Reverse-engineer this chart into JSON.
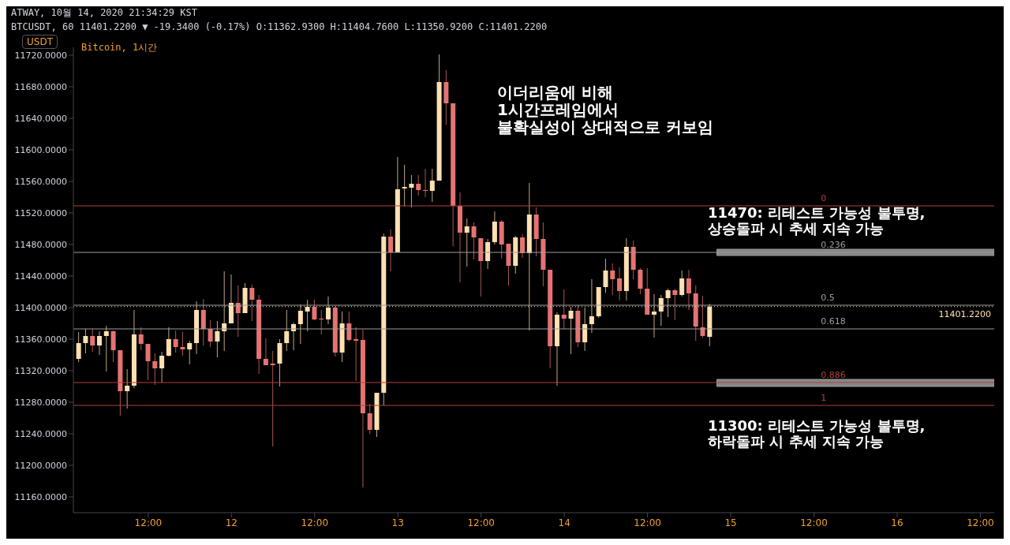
{
  "chart_data": {
    "type": "candlestick",
    "title": "Bitcoin, 1시간",
    "ylabel": "USDT",
    "annotations": [
      "ATWAY, 10월 14, 2020 21:34:29 KST",
      "BTCUSDT, 60 11401.2200 ▼ -19.3400 (-0.17%) O:11362.9300 H:11404.7600 L:11350.9200 C:11401.2200",
      "이더리움에 비해\n1시간프레임에서\n불확실성이 상대적으로 커보임",
      "11470: 리테스트 가능성 불투명,\n상승돌파 시 추세 지속 가능",
      "11300: 리테스트 가능성 불투명,\n하락돌파 시 추세 지속 가능",
      {
        "text": "0",
        "x": "2020-10-15T13:00",
        "y": 11529
      },
      {
        "text": "0.236",
        "x": "2020-10-15T13:00",
        "y": 11470
      },
      {
        "text": "0.5",
        "x": "2020-10-15T13:00",
        "y": 11403
      },
      {
        "text": "0.618",
        "x": "2020-10-15T13:00",
        "y": 11373
      },
      {
        "text": "0.886",
        "x": "2020-10-15T13:00",
        "y": 11305
      },
      {
        "text": "1",
        "x": "2020-10-15T13:00",
        "y": 11276
      }
    ],
    "x": [
      "2020-10-11T02:00",
      "2020-10-11T03:00",
      "2020-10-11T04:00",
      "2020-10-11T05:00",
      "2020-10-11T06:00",
      "2020-10-11T07:00",
      "2020-10-11T08:00",
      "2020-10-11T09:00",
      "2020-10-11T10:00",
      "2020-10-11T11:00",
      "2020-10-11T12:00",
      "2020-10-11T13:00",
      "2020-10-11T14:00",
      "2020-10-11T15:00",
      "2020-10-11T16:00",
      "2020-10-11T17:00",
      "2020-10-11T18:00",
      "2020-10-11T19:00",
      "2020-10-11T20:00",
      "2020-10-11T21:00",
      "2020-10-11T22:00",
      "2020-10-11T23:00",
      "2020-10-12T00:00",
      "2020-10-12T01:00",
      "2020-10-12T02:00",
      "2020-10-12T03:00",
      "2020-10-12T04:00",
      "2020-10-12T05:00",
      "2020-10-12T06:00",
      "2020-10-12T07:00",
      "2020-10-12T08:00",
      "2020-10-12T09:00",
      "2020-10-12T10:00",
      "2020-10-12T11:00",
      "2020-10-12T12:00",
      "2020-10-12T13:00",
      "2020-10-12T14:00",
      "2020-10-12T15:00",
      "2020-10-12T16:00",
      "2020-10-12T17:00",
      "2020-10-12T18:00",
      "2020-10-12T19:00",
      "2020-10-12T20:00",
      "2020-10-12T21:00",
      "2020-10-12T22:00",
      "2020-10-12T23:00",
      "2020-10-13T00:00",
      "2020-10-13T01:00",
      "2020-10-13T02:00",
      "2020-10-13T03:00",
      "2020-10-13T04:00",
      "2020-10-13T05:00",
      "2020-10-13T06:00",
      "2020-10-13T07:00",
      "2020-10-13T08:00",
      "2020-10-13T09:00",
      "2020-10-13T10:00",
      "2020-10-13T11:00",
      "2020-10-13T12:00",
      "2020-10-13T13:00",
      "2020-10-13T14:00",
      "2020-10-13T15:00",
      "2020-10-13T16:00",
      "2020-10-13T17:00",
      "2020-10-13T18:00",
      "2020-10-13T19:00",
      "2020-10-13T20:00",
      "2020-10-13T21:00",
      "2020-10-13T22:00",
      "2020-10-13T23:00",
      "2020-10-14T00:00",
      "2020-10-14T01:00",
      "2020-10-14T02:00",
      "2020-10-14T03:00",
      "2020-10-14T04:00",
      "2020-10-14T05:00",
      "2020-10-14T06:00",
      "2020-10-14T07:00",
      "2020-10-14T08:00",
      "2020-10-14T09:00",
      "2020-10-14T10:00",
      "2020-10-14T11:00",
      "2020-10-14T12:00",
      "2020-10-14T13:00",
      "2020-10-14T14:00",
      "2020-10-14T15:00",
      "2020-10-14T16:00",
      "2020-10-14T17:00",
      "2020-10-14T18:00",
      "2020-10-14T19:00",
      "2020-10-14T20:00",
      "2020-10-14T21:00"
    ],
    "ohlc": [
      [
        11335,
        11369,
        11331,
        11355
      ],
      [
        11355,
        11373,
        11342,
        11364
      ],
      [
        11364,
        11373,
        11344,
        11352
      ],
      [
        11352,
        11370,
        11340,
        11364
      ],
      [
        11364,
        11377,
        11319,
        11370
      ],
      [
        11370,
        11371,
        11331,
        11346
      ],
      [
        11346,
        11346,
        11263,
        11294
      ],
      [
        11294,
        11322,
        11272,
        11301
      ],
      [
        11301,
        11397,
        11298,
        11366
      ],
      [
        11366,
        11375,
        11346,
        11354
      ],
      [
        11354,
        11354,
        11308,
        11332
      ],
      [
        11332,
        11342,
        11302,
        11323
      ],
      [
        11323,
        11344,
        11305,
        11339
      ],
      [
        11339,
        11375,
        11338,
        11360
      ],
      [
        11360,
        11371,
        11343,
        11350
      ],
      [
        11350,
        11369,
        11339,
        11347
      ],
      [
        11347,
        11358,
        11328,
        11355
      ],
      [
        11355,
        11408,
        11341,
        11397
      ],
      [
        11397,
        11411,
        11352,
        11373
      ],
      [
        11373,
        11384,
        11350,
        11357
      ],
      [
        11357,
        11383,
        11337,
        11370
      ],
      [
        11370,
        11446,
        11345,
        11380
      ],
      [
        11380,
        11442,
        11380,
        11406
      ],
      [
        11406,
        11428,
        11363,
        11393
      ],
      [
        11393,
        11431,
        11393,
        11425
      ],
      [
        11425,
        11429,
        11383,
        11410
      ],
      [
        11410,
        11416,
        11316,
        11335
      ],
      [
        11335,
        11361,
        11327,
        11327
      ],
      [
        11329,
        11345,
        11224,
        11327
      ],
      [
        11329,
        11360,
        11300,
        11355
      ],
      [
        11355,
        11397,
        11345,
        11370
      ],
      [
        11370,
        11381,
        11346,
        11379
      ],
      [
        11379,
        11404,
        11354,
        11396
      ],
      [
        11395,
        11410,
        11370,
        11401
      ],
      [
        11401,
        11410,
        11384,
        11385
      ],
      [
        11386,
        11397,
        11366,
        11385
      ],
      [
        11385,
        11414,
        11379,
        11400
      ],
      [
        11400,
        11402,
        11338,
        11343
      ],
      [
        11343,
        11395,
        11331,
        11380
      ],
      [
        11380,
        11395,
        11357,
        11359
      ],
      [
        11360,
        11375,
        11307,
        11358
      ],
      [
        11359,
        11372,
        11172,
        11266
      ],
      [
        11266,
        11278,
        11240,
        11245
      ],
      [
        11245,
        11292,
        11236,
        11292
      ],
      [
        11292,
        11494,
        11276,
        11490
      ],
      [
        11490,
        11499,
        11446,
        11470
      ],
      [
        11470,
        11591,
        11470,
        11550
      ],
      [
        11551,
        11581,
        11528,
        11553
      ],
      [
        11552,
        11568,
        11527,
        11557
      ],
      [
        11557,
        11568,
        11542,
        11549
      ],
      [
        11549,
        11576,
        11540,
        11548
      ],
      [
        11548,
        11576,
        11534,
        11561
      ],
      [
        11561,
        11721,
        11561,
        11686
      ],
      [
        11686,
        11701,
        11632,
        11659
      ],
      [
        11659,
        11659,
        11478,
        11529
      ],
      [
        11529,
        11546,
        11432,
        11495
      ],
      [
        11495,
        11513,
        11452,
        11503
      ],
      [
        11503,
        11508,
        11461,
        11489
      ],
      [
        11488,
        11488,
        11414,
        11459
      ],
      [
        11459,
        11487,
        11449,
        11483
      ],
      [
        11483,
        11522,
        11480,
        11509
      ],
      [
        11509,
        11511,
        11462,
        11480
      ],
      [
        11481,
        11481,
        11428,
        11453
      ],
      [
        11453,
        11491,
        11443,
        11489
      ],
      [
        11489,
        11493,
        11463,
        11469
      ],
      [
        11469,
        11558,
        11371,
        11518
      ],
      [
        11518,
        11527,
        11465,
        11487
      ],
      [
        11487,
        11508,
        11427,
        11448
      ],
      [
        11448,
        11448,
        11323,
        11351
      ],
      [
        11351,
        11394,
        11301,
        11391
      ],
      [
        11391,
        11423,
        11373,
        11386
      ],
      [
        11386,
        11401,
        11341,
        11396
      ],
      [
        11396,
        11403,
        11350,
        11356
      ],
      [
        11356,
        11400,
        11345,
        11379
      ],
      [
        11379,
        11436,
        11368,
        11389
      ],
      [
        11389,
        11426,
        11387,
        11426
      ],
      [
        11426,
        11462,
        11419,
        11447
      ],
      [
        11447,
        11456,
        11416,
        11436
      ],
      [
        11437,
        11451,
        11409,
        11421
      ],
      [
        11421,
        11488,
        11409,
        11477
      ],
      [
        11477,
        11485,
        11436,
        11448
      ],
      [
        11448,
        11450,
        11417,
        11424
      ],
      [
        11424,
        11450,
        11391,
        11391
      ],
      [
        11391,
        11417,
        11362,
        11395
      ],
      [
        11395,
        11416,
        11377,
        11412
      ],
      [
        11412,
        11424,
        11388,
        11422
      ],
      [
        11422,
        11424,
        11384,
        11416
      ],
      [
        11416,
        11447,
        11414,
        11437
      ],
      [
        11437,
        11448,
        11397,
        11418
      ],
      [
        11418,
        11428,
        11358,
        11376
      ],
      [
        11375,
        11415,
        11362,
        11364
      ],
      [
        11362.93,
        11404.76,
        11350.92,
        11401.22
      ]
    ],
    "colors": [
      "#ffe0b2",
      "#ffe0b2",
      "#e57373",
      "#ffe0b2",
      "#ffe0b2",
      "#e57373",
      "#e57373",
      "#ffe0b2",
      "#ffe0b2",
      "#e57373",
      "#e57373",
      "#e57373",
      "#ffe0b2",
      "#ffe0b2",
      "#e57373",
      "#e57373",
      "#ffe0b2",
      "#ffe0b2",
      "#e57373",
      "#e57373",
      "#ffe0b2",
      "#ffe0b2",
      "#ffe0b2",
      "#e57373",
      "#ffe0b2",
      "#e57373",
      "#e57373",
      "#e57373",
      "#e57373",
      "#ffe0b2",
      "#ffe0b2",
      "#ffe0b2",
      "#ffe0b2",
      "#ffe0b2",
      "#e57373",
      "#e57373",
      "#ffe0b2",
      "#e57373",
      "#ffe0b2",
      "#e57373",
      "#e57373",
      "#e57373",
      "#e57373",
      "#ffe0b2",
      "#ffe0b2",
      "#e57373",
      "#ffe0b2",
      "#ffe0b2",
      "#ffe0b2",
      "#e57373",
      "#e57373",
      "#ffe0b2",
      "#ffe0b2",
      "#e57373",
      "#e57373",
      "#e57373",
      "#ffe0b2",
      "#e57373",
      "#e57373",
      "#ffe0b2",
      "#ffe0b2",
      "#e57373",
      "#e57373",
      "#ffe0b2",
      "#e57373",
      "#ffe0b2",
      "#e57373",
      "#e57373",
      "#e57373",
      "#ffe0b2",
      "#e57373",
      "#ffe0b2",
      "#e57373",
      "#ffe0b2",
      "#ffe0b2",
      "#ffe0b2",
      "#ffe0b2",
      "#e57373",
      "#e57373",
      "#ffe0b2",
      "#e57373",
      "#e57373",
      "#e57373",
      "#ffe0b2",
      "#ffe0b2",
      "#ffe0b2",
      "#e57373",
      "#ffe0b2",
      "#e57373",
      "#e57373",
      "#e57373",
      "#ffe0b2"
    ],
    "xlim": [
      "2020-10-11T01:12",
      "2020-10-16T14:00"
    ],
    "xticks": [
      {
        "value": "2020-10-11T12:00",
        "label": "12:00"
      },
      {
        "value": "2020-10-12",
        "label": "12"
      },
      {
        "value": "2020-10-12T12:00",
        "label": "12:00"
      },
      {
        "value": "2020-10-13",
        "label": "13"
      },
      {
        "value": "2020-10-13T12:00",
        "label": "12:00"
      },
      {
        "value": "2020-10-14",
        "label": "14"
      },
      {
        "value": "2020-10-14T12:00",
        "label": "12:00"
      },
      {
        "value": "2020-10-15",
        "label": "15"
      },
      {
        "value": "2020-10-15T12:00",
        "label": "12:00"
      },
      {
        "value": "2020-10-16",
        "label": "16"
      },
      {
        "value": "2020-10-16T12:00",
        "label": "12:00"
      }
    ],
    "ylim": [
      11140,
      11730
    ],
    "yticks": [
      {
        "value": 11160,
        "label": "11160.0000"
      },
      {
        "value": 11200,
        "label": "11200.0000"
      },
      {
        "value": 11240,
        "label": "11240.0000"
      },
      {
        "value": 11280,
        "label": "11280.0000"
      },
      {
        "value": 11320,
        "label": "11320.0000"
      },
      {
        "value": 11360,
        "label": "11360.0000"
      },
      {
        "value": 11400,
        "label": "11400.0000"
      },
      {
        "value": 11440,
        "label": "11440.0000"
      },
      {
        "value": 11480,
        "label": "11480.0000"
      },
      {
        "value": 11520,
        "label": "11520.0000"
      },
      {
        "value": 11560,
        "label": "11560.0000"
      },
      {
        "value": 11600,
        "label": "11600.0000"
      },
      {
        "value": 11640,
        "label": "11640.0000"
      },
      {
        "value": 11680,
        "label": "11680.0000"
      },
      {
        "value": 11720,
        "label": "11720.0000"
      }
    ],
    "ref_lines": [
      {
        "axis": "y",
        "value": 11529,
        "color": "#b2403c"
      },
      {
        "axis": "y",
        "value": 11470,
        "color": "#9e9e9e"
      },
      {
        "axis": "y",
        "value": 11403,
        "color": "#9e9e9e"
      },
      {
        "axis": "y",
        "value": 11373,
        "color": "#9e9e9e"
      },
      {
        "axis": "y",
        "value": 11305,
        "color": "#b2403c"
      },
      {
        "axis": "y",
        "value": 11276,
        "color": "#b2403c"
      },
      {
        "axis": "y",
        "value": 11401.22,
        "label": "11401.2200",
        "color": "#ffe0b2",
        "line_style": "dotted"
      }
    ],
    "bands": [
      {
        "axis": "y",
        "from": 11466,
        "to": 11474,
        "color": "#9e9e9e"
      },
      {
        "axis": "y",
        "from": 11300,
        "to": 11309,
        "color": "#9e9e9e"
      }
    ]
  }
}
